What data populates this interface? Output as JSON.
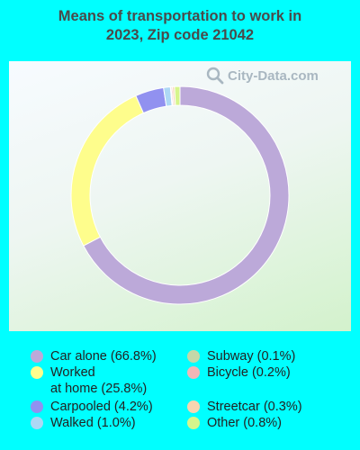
{
  "title_line1": "Means of transportation to work in",
  "title_line2": "2023, Zip code 21042",
  "watermark": "City-Data.com",
  "chart_data": {
    "type": "pie",
    "title": "Means of transportation to work in 2023, Zip code 21042",
    "slices": [
      {
        "label": "Car alone",
        "value": 66.8,
        "color": "#bca9d9",
        "legend": "Car alone (66.8%)"
      },
      {
        "label": "Worked at home",
        "value": 25.8,
        "color": "#fefd8c",
        "legend": "Worked\nat home (25.8%)"
      },
      {
        "label": "Carpooled",
        "value": 4.2,
        "color": "#9191f0",
        "legend": "Carpooled (4.2%)"
      },
      {
        "label": "Walked",
        "value": 1.0,
        "color": "#add8f5",
        "legend": "Walked (1.0%)"
      },
      {
        "label": "Subway",
        "value": 0.1,
        "color": "#c4d8a8",
        "legend": "Subway (0.1%)"
      },
      {
        "label": "Bicycle",
        "value": 0.2,
        "color": "#f2b6b6",
        "legend": "Bicycle (0.2%)"
      },
      {
        "label": "Streetcar",
        "value": 0.3,
        "color": "#f7d5b0",
        "legend": "Streetcar (0.3%)"
      },
      {
        "label": "Other",
        "value": 0.8,
        "color": "#d6f58c",
        "legend": "Other (0.8%)"
      }
    ]
  }
}
